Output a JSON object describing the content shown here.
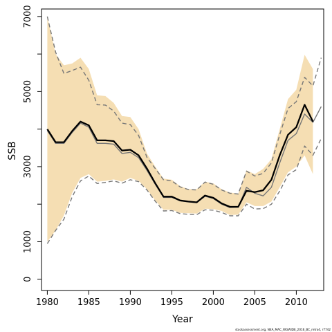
{
  "chart_data": {
    "type": "line",
    "xlabel": "Year",
    "ylabel": "SSB",
    "caption": "stockassessment.org, NEA_MAC_WGWIDE_2016_BC_retro4, r7742",
    "xlim": [
      1979.3,
      2013.3
    ],
    "ylim": [
      -300,
      7200
    ],
    "x_ticks": [
      1980,
      1985,
      1990,
      1995,
      2000,
      2005,
      2010
    ],
    "y_ticks": [
      0,
      1000,
      3000,
      5000,
      7000
    ],
    "y_ticks_minor": [
      0,
      1000,
      2000,
      3000,
      4000,
      5000,
      6000,
      7000
    ],
    "grid": false,
    "colors": {
      "band": "#f5deb3",
      "main_line": "#000000",
      "retro_solid": "#777777",
      "retro_dashed": "#777777"
    },
    "band": {
      "x": [
        1980,
        1981,
        1982,
        1983,
        1984,
        1985,
        1986,
        1987,
        1988,
        1989,
        1990,
        1991,
        1992,
        1993,
        1994,
        1995,
        1996,
        1997,
        1998,
        1999,
        2000,
        2001,
        2002,
        2003,
        2004,
        2005,
        2006,
        2007,
        2008,
        2009,
        2010,
        2011,
        2012
      ],
      "lower": [
        1000,
        1300,
        1700,
        2300,
        2700,
        2800,
        2600,
        2620,
        2660,
        2600,
        2700,
        2620,
        2400,
        2100,
        1850,
        1850,
        1770,
        1760,
        1750,
        1880,
        1870,
        1820,
        1710,
        1720,
        2050,
        1950,
        1950,
        2070,
        2450,
        2850,
        3000,
        3300,
        2800
      ],
      "upper": [
        7000,
        6000,
        5700,
        5750,
        5900,
        5600,
        4900,
        4880,
        4700,
        4350,
        4320,
        4000,
        3350,
        3000,
        2680,
        2650,
        2480,
        2400,
        2400,
        2600,
        2550,
        2400,
        2310,
        2280,
        2900,
        2800,
        2940,
        3200,
        4000,
        4800,
        5050,
        5980,
        5600
      ]
    },
    "series": [
      {
        "style": "solid-bold",
        "x": [
          1980,
          1981,
          1982,
          1983,
          1984,
          1985,
          1986,
          1987,
          1988,
          1989,
          1990,
          1991,
          1992,
          1993,
          1994,
          1995,
          1996,
          1997,
          1998,
          1999,
          2000,
          2001,
          2002,
          2003,
          2004,
          2005,
          2006,
          2007,
          2008,
          2009,
          2010,
          2011,
          2012
        ],
        "values": [
          4000,
          3650,
          3650,
          3950,
          4200,
          4100,
          3700,
          3700,
          3680,
          3430,
          3450,
          3300,
          2950,
          2560,
          2200,
          2200,
          2100,
          2070,
          2050,
          2230,
          2170,
          2020,
          1930,
          1930,
          2360,
          2320,
          2370,
          2650,
          3300,
          3850,
          4050,
          4650,
          4200
        ]
      },
      {
        "style": "solid",
        "x": [
          1980,
          1981,
          1982,
          1983,
          1984,
          1985,
          1986,
          1987,
          1988,
          1989,
          1990,
          1991,
          1992,
          1993,
          1994,
          1995,
          1996,
          1997,
          1998,
          1999,
          2000,
          2001,
          2002,
          2003,
          2004,
          2005,
          2006,
          2007,
          2008,
          2009,
          2010,
          2011,
          2012,
          2013
        ],
        "values": [
          3960,
          3620,
          3620,
          3910,
          4160,
          4050,
          3620,
          3620,
          3600,
          3350,
          3380,
          3240,
          2900,
          2530,
          2180,
          2180,
          2090,
          2060,
          2040,
          2210,
          2150,
          2000,
          1910,
          1920,
          2450,
          2290,
          2220,
          2450,
          3100,
          3700,
          3880,
          4400,
          4180,
          4600
        ]
      },
      {
        "style": "dashed",
        "x": [
          1980,
          1981,
          1982,
          1983,
          1984,
          1985,
          1986,
          1987,
          1988,
          1989,
          1990,
          1991,
          1992,
          1993,
          1994,
          1995,
          1996,
          1997,
          1998,
          1999,
          2000,
          2001,
          2002,
          2003,
          2004,
          2005,
          2006,
          2007,
          2008,
          2009,
          2010,
          2011,
          2012,
          2013
        ],
        "values": [
          7000,
          6050,
          5480,
          5560,
          5650,
          5300,
          4650,
          4640,
          4480,
          4160,
          4120,
          3830,
          3250,
          2950,
          2650,
          2620,
          2460,
          2390,
          2380,
          2590,
          2530,
          2380,
          2290,
          2270,
          2880,
          2750,
          2820,
          3100,
          3850,
          4550,
          4730,
          5380,
          5150,
          5900
        ]
      },
      {
        "style": "dashed",
        "x": [
          1980,
          1981,
          1982,
          1983,
          1984,
          1985,
          1986,
          1987,
          1988,
          1989,
          1990,
          1991,
          1992,
          1993,
          1994,
          1995,
          1996,
          1997,
          1998,
          1999,
          2000,
          2001,
          2002,
          2003,
          2004,
          2005,
          2006,
          2007,
          2008,
          2009,
          2010,
          2011,
          2012,
          2013
        ],
        "values": [
          950,
          1300,
          1600,
          2200,
          2620,
          2750,
          2550,
          2580,
          2620,
          2560,
          2650,
          2600,
          2380,
          2080,
          1820,
          1830,
          1750,
          1730,
          1720,
          1850,
          1840,
          1780,
          1690,
          1690,
          2000,
          1870,
          1880,
          2000,
          2350,
          2780,
          2920,
          3550,
          3300,
          3750
        ]
      }
    ]
  }
}
